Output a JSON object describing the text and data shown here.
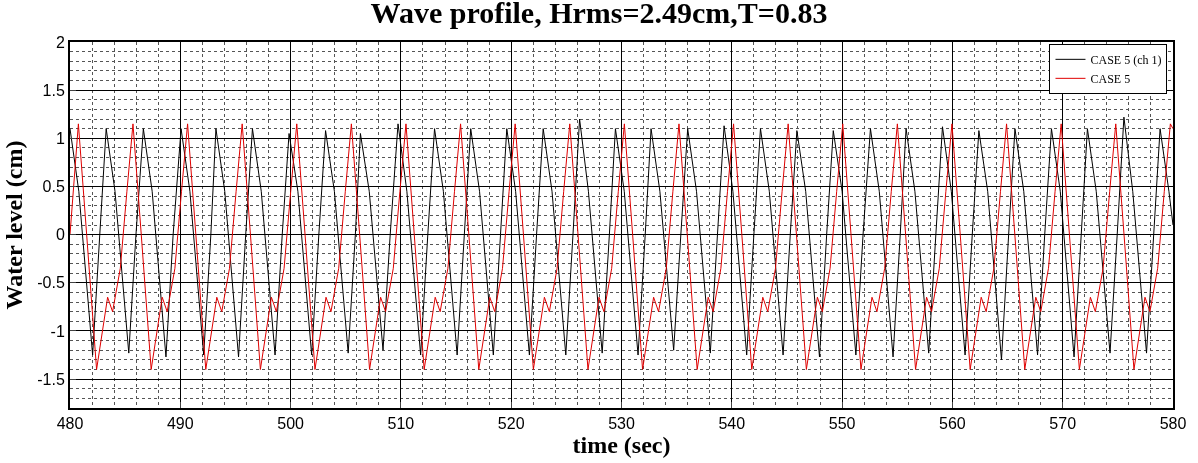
{
  "chart_data": {
    "type": "line",
    "title": "Wave profile, Hrms=2.49cm,T=0.83",
    "xlabel": "time (sec)",
    "ylabel": "Water level (cm)",
    "xlim": [
      480,
      580
    ],
    "ylim": [
      -1.8,
      2
    ],
    "xticks": [
      480,
      490,
      500,
      510,
      520,
      530,
      540,
      550,
      560,
      570,
      580
    ],
    "yticks": [
      -1.5,
      -1,
      -0.5,
      0,
      0.5,
      1,
      1.5,
      2
    ],
    "grid": true,
    "legend": "top right",
    "marker": "none",
    "line_style": "solid",
    "series": [
      {
        "name": "CASE 5 (ch 1)",
        "color": "#000000",
        "x": [
          480,
          480.8,
          482.05,
          482.7,
          483.28,
          484.08,
          485.33,
          485.98,
          486.65,
          487.45,
          488.7,
          489.35,
          490.07,
          490.87,
          492.12,
          492.77,
          493.23,
          494.03,
          495.28,
          495.93,
          496.54,
          497.34,
          498.59,
          499.24,
          499.86,
          500.66,
          501.91,
          502.56,
          503.17,
          503.97,
          505.22,
          505.87,
          506.33,
          507.13,
          508.38,
          509.03,
          509.74,
          510.54,
          511.79,
          512.44,
          513.05,
          513.85,
          515.1,
          515.75,
          516.33,
          517.13,
          518.38,
          519.03,
          519.6,
          520.4,
          521.65,
          522.3,
          522.9,
          523.7,
          524.95,
          525.6,
          526.2,
          527.0,
          528.25,
          528.9,
          529.45,
          530.25,
          531.5,
          532.15,
          532.68,
          533.48,
          534.73,
          535.38,
          536.0,
          536.8,
          538.05,
          538.7,
          539.3,
          540.1,
          541.35,
          542.0,
          542.6,
          543.4,
          544.65,
          545.3,
          545.9,
          546.7,
          547.95,
          548.6,
          549.2,
          550.0,
          551.25,
          551.9,
          552.57,
          553.37,
          554.62,
          555.27,
          555.8,
          556.6,
          557.85,
          558.5,
          559.1,
          559.9,
          561.15,
          561.8,
          562.4,
          563.2,
          564.45,
          565.1,
          565.67,
          566.47,
          567.72,
          568.37,
          568.98,
          569.78,
          571.03,
          571.68,
          572.24,
          573.04,
          574.29,
          574.94,
          575.55,
          576.35,
          577.6,
          578.25,
          578.83,
          579.63,
          580.0
        ],
        "values": [
          1.1,
          0.45,
          -1.25,
          0.0,
          1.1,
          0.45,
          -1.23,
          0.0,
          1.1,
          0.45,
          -1.27,
          0.0,
          1.1,
          0.45,
          -1.25,
          0.0,
          1.1,
          0.45,
          -1.27,
          0.0,
          1.1,
          0.45,
          -1.25,
          0.0,
          1.05,
          0.45,
          -1.25,
          0.0,
          1.08,
          0.45,
          -1.23,
          0.0,
          1.05,
          0.45,
          -1.2,
          0.0,
          1.15,
          0.45,
          -1.25,
          0.0,
          1.1,
          0.45,
          -1.25,
          0.0,
          1.1,
          0.45,
          -1.25,
          0.0,
          1.1,
          0.45,
          -1.25,
          0.0,
          1.1,
          0.45,
          -1.25,
          0.0,
          1.2,
          0.45,
          -1.23,
          0.0,
          1.1,
          0.45,
          -1.25,
          0.0,
          1.1,
          0.45,
          -1.2,
          0.0,
          1.1,
          0.45,
          -1.23,
          0.0,
          1.13,
          0.45,
          -1.25,
          0.0,
          1.1,
          0.45,
          -1.25,
          0.0,
          1.08,
          0.45,
          -1.27,
          0.0,
          1.08,
          0.45,
          -1.25,
          0.0,
          1.1,
          0.45,
          -1.27,
          0.0,
          1.1,
          0.45,
          -1.23,
          0.0,
          1.12,
          0.45,
          -1.25,
          0.0,
          1.08,
          0.45,
          -1.3,
          0.0,
          1.1,
          0.45,
          -1.25,
          0.0,
          1.1,
          0.45,
          -1.27,
          0.0,
          1.1,
          0.45,
          -1.23,
          0.0,
          1.22,
          0.45,
          -1.23,
          0.0,
          1.1,
          0.45,
          0.1
        ]
      },
      {
        "name": "CASE 5",
        "color": "#e00000",
        "x": [
          480.0,
          480.76,
          481.51,
          482.41,
          483.41,
          483.86,
          484.56,
          485.16,
          485.71,
          486.46,
          487.36,
          488.36,
          488.81,
          489.51,
          490.11,
          490.66,
          491.41,
          492.31,
          493.31,
          493.76,
          494.46,
          495.06,
          495.61,
          496.36,
          497.26,
          498.26,
          498.71,
          499.41,
          500.01,
          500.56,
          501.31,
          502.21,
          503.21,
          503.66,
          504.36,
          504.96,
          505.51,
          506.26,
          507.16,
          508.16,
          508.61,
          509.31,
          509.91,
          510.46,
          511.21,
          512.11,
          513.11,
          513.56,
          514.26,
          514.86,
          515.41,
          516.16,
          517.06,
          518.06,
          518.51,
          519.21,
          519.81,
          520.36,
          521.11,
          522.01,
          523.01,
          523.46,
          524.16,
          524.76,
          525.31,
          526.06,
          526.96,
          527.96,
          528.41,
          529.11,
          529.71,
          530.26,
          531.01,
          531.91,
          532.91,
          533.36,
          534.06,
          534.66,
          535.21,
          535.96,
          536.86,
          537.86,
          538.31,
          539.01,
          539.61,
          540.16,
          540.91,
          541.81,
          542.81,
          543.26,
          543.96,
          544.56,
          545.11,
          545.86,
          546.76,
          547.76,
          548.21,
          548.91,
          549.51,
          550.06,
          550.81,
          551.71,
          552.71,
          553.16,
          553.86,
          554.46,
          555.01,
          555.76,
          556.66,
          557.66,
          558.11,
          558.81,
          559.41,
          559.96,
          560.71,
          561.61,
          562.61,
          563.06,
          563.76,
          564.36,
          564.91,
          565.66,
          566.56,
          567.56,
          568.01,
          568.71,
          569.31,
          569.86,
          570.61,
          571.51,
          572.51,
          572.96,
          573.66,
          574.26,
          574.81,
          575.56,
          576.46,
          577.46,
          577.91,
          578.61,
          579.21,
          579.76,
          580.0
        ],
        "values": [
          0.0,
          1.15,
          0.0,
          -1.4,
          -0.65,
          -0.8,
          -0.35,
          0.45,
          1.15,
          0.0,
          -1.4,
          -0.65,
          -0.8,
          -0.35,
          0.45,
          1.15,
          0.0,
          -1.4,
          -0.65,
          -0.8,
          -0.35,
          0.45,
          1.15,
          0.0,
          -1.4,
          -0.65,
          -0.8,
          -0.35,
          0.45,
          1.15,
          0.0,
          -1.4,
          -0.65,
          -0.8,
          -0.35,
          0.45,
          1.15,
          0.0,
          -1.4,
          -0.65,
          -0.8,
          -0.35,
          0.45,
          1.15,
          0.0,
          -1.4,
          -0.65,
          -0.8,
          -0.35,
          0.45,
          1.15,
          0.0,
          -1.4,
          -0.65,
          -0.8,
          -0.35,
          0.45,
          1.15,
          0.0,
          -1.4,
          -0.65,
          -0.8,
          -0.35,
          0.45,
          1.15,
          0.0,
          -1.4,
          -0.65,
          -0.8,
          -0.35,
          0.45,
          1.15,
          0.0,
          -1.4,
          -0.65,
          -0.8,
          -0.35,
          0.45,
          1.15,
          0.0,
          -1.4,
          -0.65,
          -0.8,
          -0.35,
          0.45,
          1.15,
          0.0,
          -1.4,
          -0.65,
          -0.8,
          -0.35,
          0.45,
          1.15,
          0.0,
          -1.4,
          -0.65,
          -0.8,
          -0.35,
          0.45,
          1.15,
          0.0,
          -1.4,
          -0.65,
          -0.8,
          -0.35,
          0.45,
          1.15,
          0.0,
          -1.4,
          -0.65,
          -0.8,
          -0.35,
          0.45,
          1.15,
          0.0,
          -1.4,
          -0.65,
          -0.8,
          -0.35,
          0.45,
          1.15,
          0.0,
          -1.4,
          -0.65,
          -0.8,
          -0.35,
          0.45,
          1.15,
          0.0,
          -1.4,
          -0.65,
          -0.8,
          -0.35,
          0.45,
          1.15,
          0.0,
          -1.4,
          -0.65,
          -0.8,
          -0.35,
          0.45,
          1.15,
          1.1
        ]
      }
    ]
  }
}
